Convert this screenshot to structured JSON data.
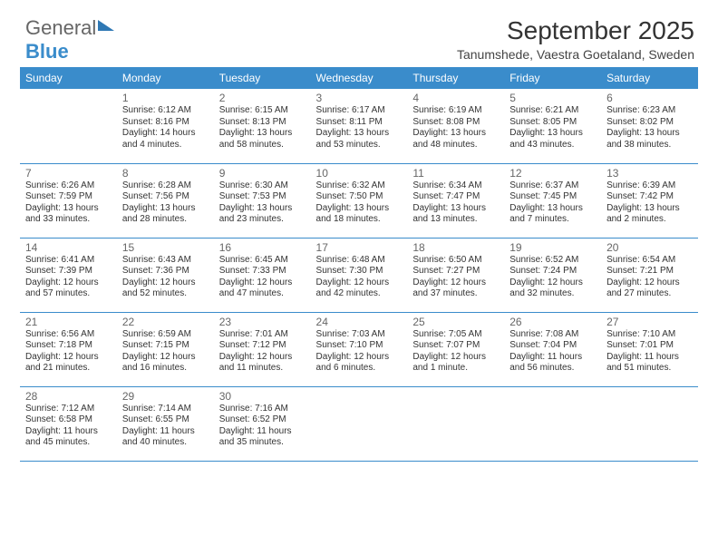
{
  "logo": {
    "text1": "General",
    "text2": "Blue"
  },
  "title": "September 2025",
  "location": "Tanumshede, Vaestra Goetaland, Sweden",
  "columns": [
    "Sunday",
    "Monday",
    "Tuesday",
    "Wednesday",
    "Thursday",
    "Friday",
    "Saturday"
  ],
  "colors": {
    "header_bg": "#3a8ccb",
    "header_fg": "#ffffff",
    "border": "#3a8ccb",
    "text": "#333333",
    "daynum": "#666666",
    "background": "#ffffff"
  },
  "fonts": {
    "title_size_pt": 21,
    "location_size_pt": 11,
    "header_size_pt": 9,
    "daynum_size_pt": 9,
    "body_size_pt": 8
  },
  "weeks": [
    [
      null,
      {
        "n": "1",
        "sunrise": "Sunrise: 6:12 AM",
        "sunset": "Sunset: 8:16 PM",
        "daylight": "Daylight: 14 hours and 4 minutes."
      },
      {
        "n": "2",
        "sunrise": "Sunrise: 6:15 AM",
        "sunset": "Sunset: 8:13 PM",
        "daylight": "Daylight: 13 hours and 58 minutes."
      },
      {
        "n": "3",
        "sunrise": "Sunrise: 6:17 AM",
        "sunset": "Sunset: 8:11 PM",
        "daylight": "Daylight: 13 hours and 53 minutes."
      },
      {
        "n": "4",
        "sunrise": "Sunrise: 6:19 AM",
        "sunset": "Sunset: 8:08 PM",
        "daylight": "Daylight: 13 hours and 48 minutes."
      },
      {
        "n": "5",
        "sunrise": "Sunrise: 6:21 AM",
        "sunset": "Sunset: 8:05 PM",
        "daylight": "Daylight: 13 hours and 43 minutes."
      },
      {
        "n": "6",
        "sunrise": "Sunrise: 6:23 AM",
        "sunset": "Sunset: 8:02 PM",
        "daylight": "Daylight: 13 hours and 38 minutes."
      }
    ],
    [
      {
        "n": "7",
        "sunrise": "Sunrise: 6:26 AM",
        "sunset": "Sunset: 7:59 PM",
        "daylight": "Daylight: 13 hours and 33 minutes."
      },
      {
        "n": "8",
        "sunrise": "Sunrise: 6:28 AM",
        "sunset": "Sunset: 7:56 PM",
        "daylight": "Daylight: 13 hours and 28 minutes."
      },
      {
        "n": "9",
        "sunrise": "Sunrise: 6:30 AM",
        "sunset": "Sunset: 7:53 PM",
        "daylight": "Daylight: 13 hours and 23 minutes."
      },
      {
        "n": "10",
        "sunrise": "Sunrise: 6:32 AM",
        "sunset": "Sunset: 7:50 PM",
        "daylight": "Daylight: 13 hours and 18 minutes."
      },
      {
        "n": "11",
        "sunrise": "Sunrise: 6:34 AM",
        "sunset": "Sunset: 7:47 PM",
        "daylight": "Daylight: 13 hours and 13 minutes."
      },
      {
        "n": "12",
        "sunrise": "Sunrise: 6:37 AM",
        "sunset": "Sunset: 7:45 PM",
        "daylight": "Daylight: 13 hours and 7 minutes."
      },
      {
        "n": "13",
        "sunrise": "Sunrise: 6:39 AM",
        "sunset": "Sunset: 7:42 PM",
        "daylight": "Daylight: 13 hours and 2 minutes."
      }
    ],
    [
      {
        "n": "14",
        "sunrise": "Sunrise: 6:41 AM",
        "sunset": "Sunset: 7:39 PM",
        "daylight": "Daylight: 12 hours and 57 minutes."
      },
      {
        "n": "15",
        "sunrise": "Sunrise: 6:43 AM",
        "sunset": "Sunset: 7:36 PM",
        "daylight": "Daylight: 12 hours and 52 minutes."
      },
      {
        "n": "16",
        "sunrise": "Sunrise: 6:45 AM",
        "sunset": "Sunset: 7:33 PM",
        "daylight": "Daylight: 12 hours and 47 minutes."
      },
      {
        "n": "17",
        "sunrise": "Sunrise: 6:48 AM",
        "sunset": "Sunset: 7:30 PM",
        "daylight": "Daylight: 12 hours and 42 minutes."
      },
      {
        "n": "18",
        "sunrise": "Sunrise: 6:50 AM",
        "sunset": "Sunset: 7:27 PM",
        "daylight": "Daylight: 12 hours and 37 minutes."
      },
      {
        "n": "19",
        "sunrise": "Sunrise: 6:52 AM",
        "sunset": "Sunset: 7:24 PM",
        "daylight": "Daylight: 12 hours and 32 minutes."
      },
      {
        "n": "20",
        "sunrise": "Sunrise: 6:54 AM",
        "sunset": "Sunset: 7:21 PM",
        "daylight": "Daylight: 12 hours and 27 minutes."
      }
    ],
    [
      {
        "n": "21",
        "sunrise": "Sunrise: 6:56 AM",
        "sunset": "Sunset: 7:18 PM",
        "daylight": "Daylight: 12 hours and 21 minutes."
      },
      {
        "n": "22",
        "sunrise": "Sunrise: 6:59 AM",
        "sunset": "Sunset: 7:15 PM",
        "daylight": "Daylight: 12 hours and 16 minutes."
      },
      {
        "n": "23",
        "sunrise": "Sunrise: 7:01 AM",
        "sunset": "Sunset: 7:12 PM",
        "daylight": "Daylight: 12 hours and 11 minutes."
      },
      {
        "n": "24",
        "sunrise": "Sunrise: 7:03 AM",
        "sunset": "Sunset: 7:10 PM",
        "daylight": "Daylight: 12 hours and 6 minutes."
      },
      {
        "n": "25",
        "sunrise": "Sunrise: 7:05 AM",
        "sunset": "Sunset: 7:07 PM",
        "daylight": "Daylight: 12 hours and 1 minute."
      },
      {
        "n": "26",
        "sunrise": "Sunrise: 7:08 AM",
        "sunset": "Sunset: 7:04 PM",
        "daylight": "Daylight: 11 hours and 56 minutes."
      },
      {
        "n": "27",
        "sunrise": "Sunrise: 7:10 AM",
        "sunset": "Sunset: 7:01 PM",
        "daylight": "Daylight: 11 hours and 51 minutes."
      }
    ],
    [
      {
        "n": "28",
        "sunrise": "Sunrise: 7:12 AM",
        "sunset": "Sunset: 6:58 PM",
        "daylight": "Daylight: 11 hours and 45 minutes."
      },
      {
        "n": "29",
        "sunrise": "Sunrise: 7:14 AM",
        "sunset": "Sunset: 6:55 PM",
        "daylight": "Daylight: 11 hours and 40 minutes."
      },
      {
        "n": "30",
        "sunrise": "Sunrise: 7:16 AM",
        "sunset": "Sunset: 6:52 PM",
        "daylight": "Daylight: 11 hours and 35 minutes."
      },
      null,
      null,
      null,
      null
    ]
  ]
}
